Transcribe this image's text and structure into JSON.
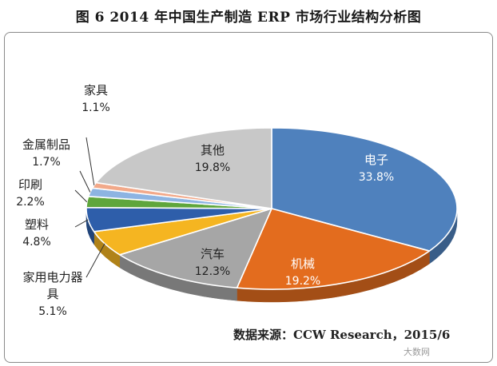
{
  "chart_data": {
    "type": "pie",
    "title": "图 6 2014 年中国生产制造 ERP 市场行业结构分析图",
    "categories": [
      "电子",
      "机械",
      "汽车",
      "家用电力器具",
      "塑料",
      "印刷",
      "金属制品",
      "家具",
      "其他"
    ],
    "values": [
      33.8,
      19.2,
      12.3,
      5.1,
      4.8,
      2.2,
      1.7,
      1.1,
      19.8
    ],
    "labels": [
      "33.8%",
      "19.2%",
      "12.3%",
      "5.1%",
      "4.8%",
      "2.2%",
      "1.7%",
      "1.1%",
      "19.8%"
    ],
    "colors": [
      "#4f81bd",
      "#e36c1e",
      "#a6a6a6",
      "#f5b521",
      "#2e5eaa",
      "#5fa63c",
      "#8db4e2",
      "#f2a98a",
      "#c8c8c8"
    ],
    "xlabel": "",
    "ylabel": "",
    "source": "数据来源：CCW Research，2015/6"
  },
  "watermark": "大数网"
}
